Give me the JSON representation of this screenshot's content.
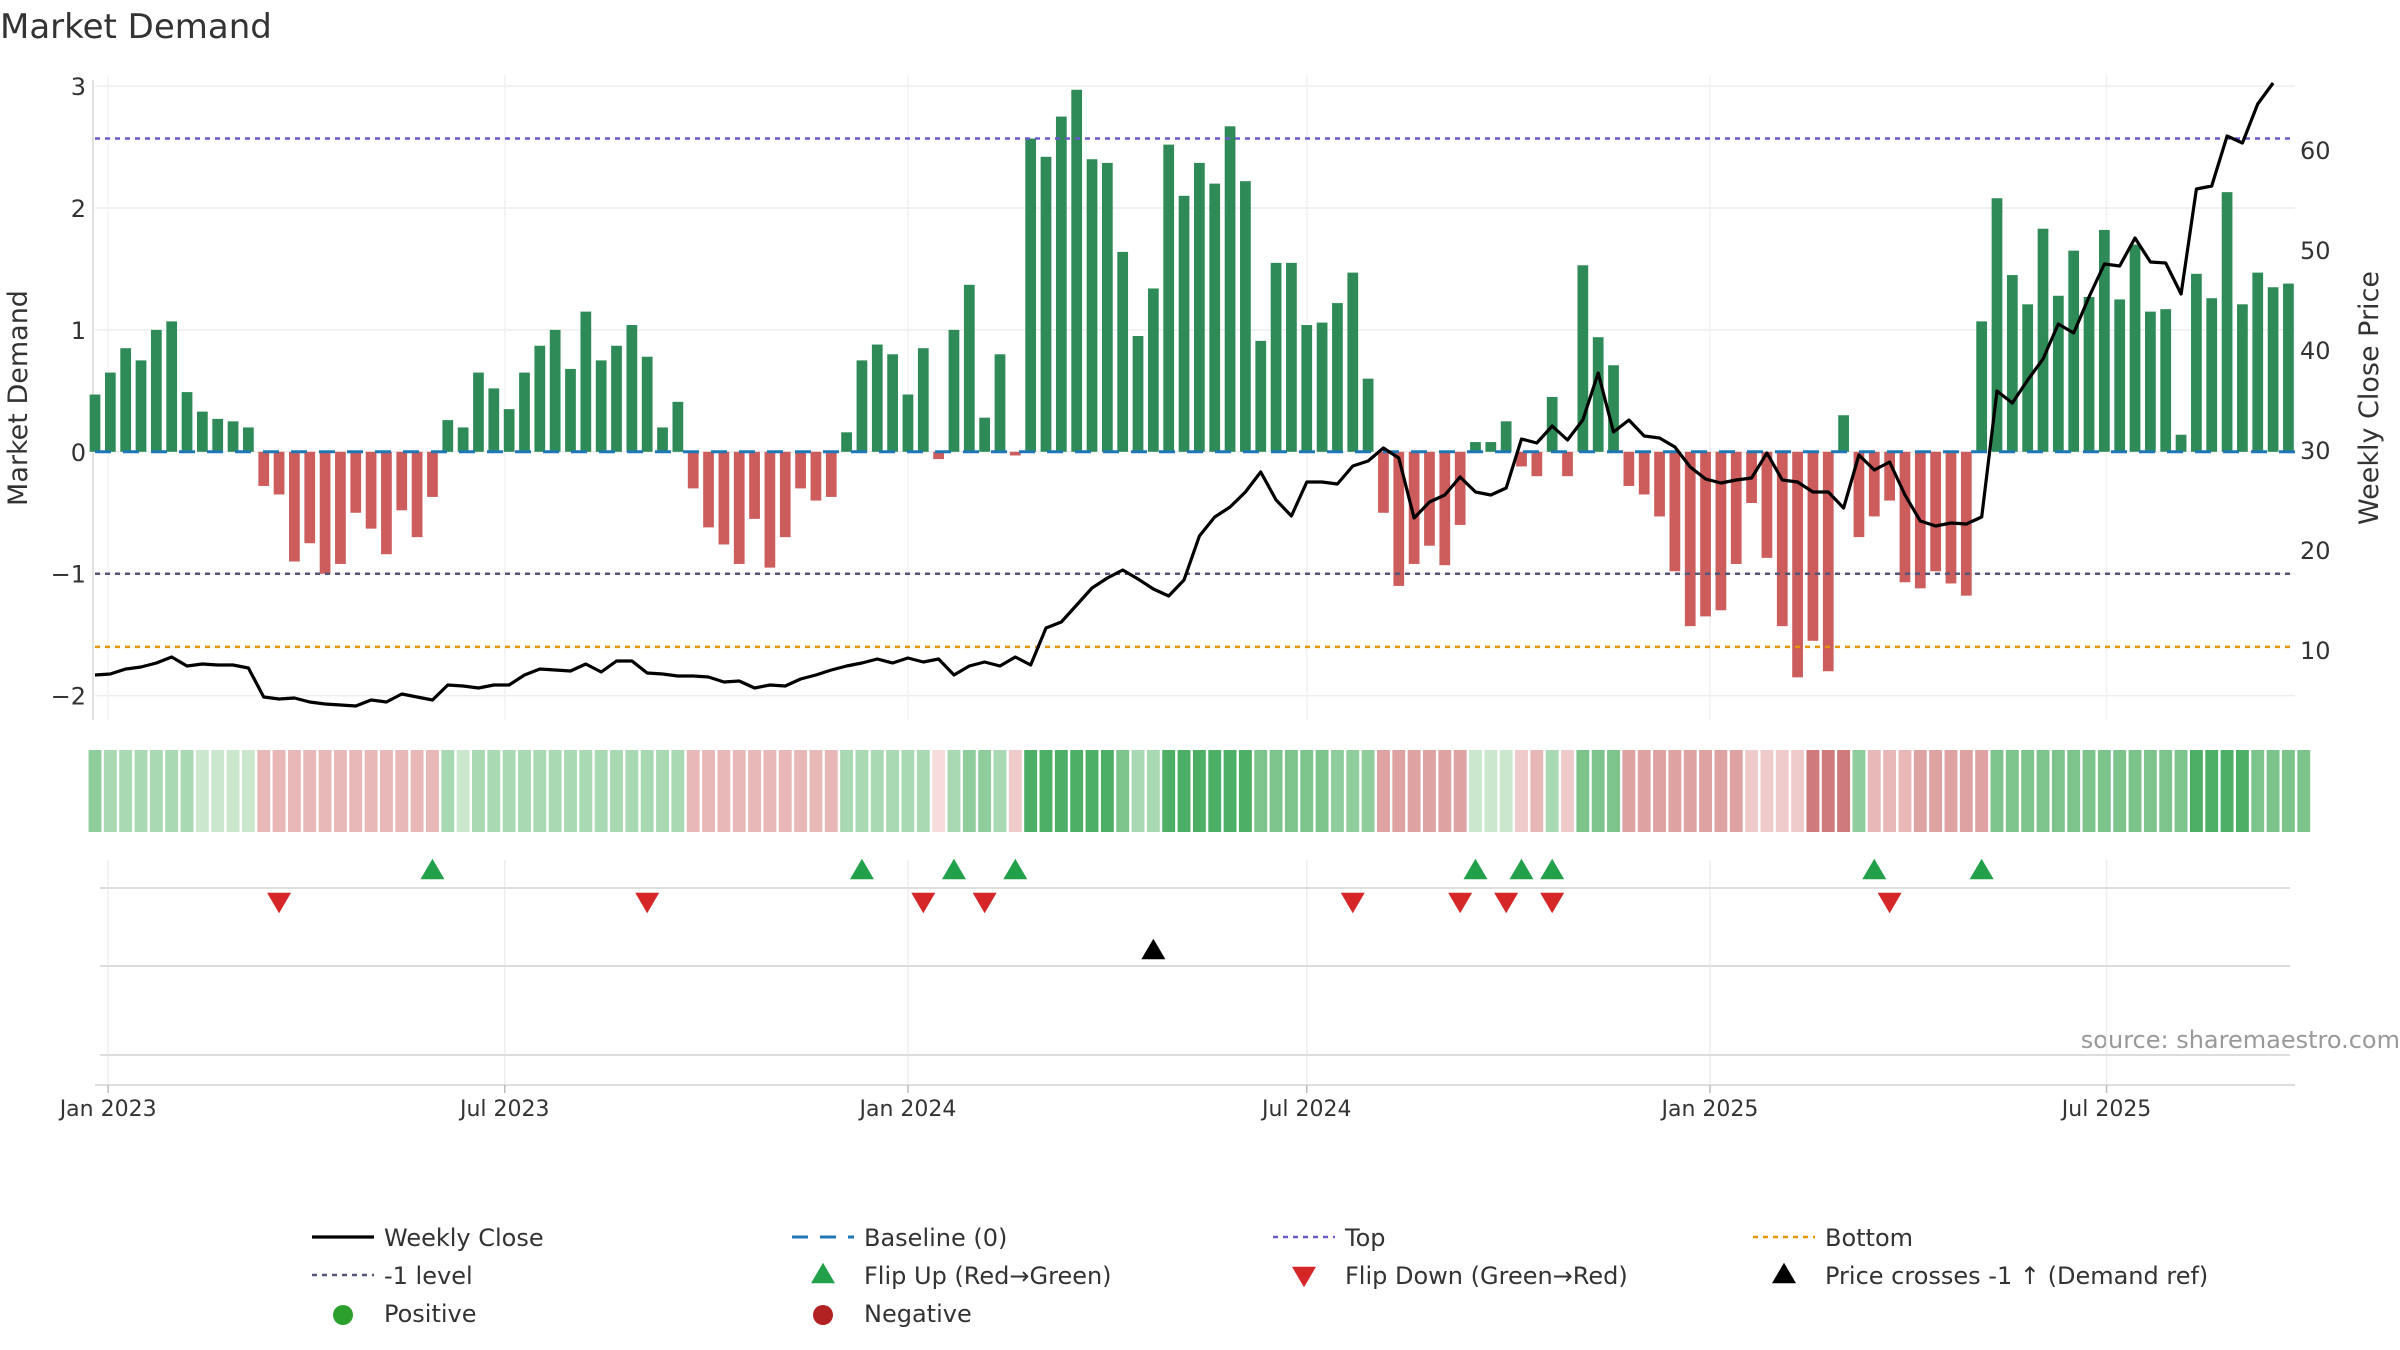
{
  "chart_data": {
    "type": "bar",
    "title": "Market Demand",
    "ylabel": "Market Demand",
    "y2label": "Weekly Close Price",
    "source": "source: sharemaestro.com",
    "ylim": [
      -2.2,
      3.05
    ],
    "y2lim": [
      3.0,
      67.0
    ],
    "yticks": [
      3,
      2,
      1,
      0,
      -1,
      -2
    ],
    "ytick_labels": [
      "3",
      "2",
      "1",
      "0",
      "−1",
      "−2"
    ],
    "y2ticks": [
      60,
      50,
      40,
      30,
      20,
      10
    ],
    "y2tick_labels": [
      "60",
      "50",
      "40",
      "30",
      "20",
      "10"
    ],
    "x_start": "2022-12-26",
    "x_end": "2025-09-25",
    "week_start": "2022-12-26",
    "xticks": [
      {
        "label": "Jan 2023",
        "date": "2023-01-01"
      },
      {
        "label": "Jul 2023",
        "date": "2023-07-01"
      },
      {
        "label": "Jan 2024",
        "date": "2024-01-01"
      },
      {
        "label": "Jul 2024",
        "date": "2024-07-01"
      },
      {
        "label": "Jan 2025",
        "date": "2025-01-01"
      },
      {
        "label": "Jul 2025",
        "date": "2025-07-01"
      }
    ],
    "levels": {
      "top": 2.57,
      "minus_one": -1.0,
      "bottom": -1.6,
      "baseline": 0
    },
    "demand": [
      0.47,
      0.65,
      0.85,
      0.75,
      1.0,
      1.07,
      0.49,
      0.33,
      0.27,
      0.25,
      0.2,
      -0.28,
      -0.35,
      -0.9,
      -0.75,
      -1.0,
      -0.92,
      -0.5,
      -0.63,
      -0.84,
      -0.48,
      -0.7,
      -0.37,
      0.26,
      0.2,
      0.65,
      0.52,
      0.35,
      0.65,
      0.87,
      1.0,
      0.68,
      1.15,
      0.75,
      0.87,
      1.04,
      0.78,
      0.2,
      0.41,
      -0.3,
      -0.62,
      -0.76,
      -0.92,
      -0.55,
      -0.95,
      -0.7,
      -0.3,
      -0.4,
      -0.37,
      0.16,
      0.75,
      0.88,
      0.8,
      0.47,
      0.85,
      -0.06,
      1.0,
      1.37,
      0.28,
      0.8,
      -0.03,
      2.57,
      2.42,
      2.75,
      2.97,
      2.4,
      2.37,
      1.64,
      0.95,
      1.34,
      2.52,
      2.1,
      2.37,
      2.2,
      2.67,
      2.22,
      0.91,
      1.55,
      1.55,
      1.04,
      1.06,
      1.22,
      1.47,
      0.6,
      -0.5,
      -1.1,
      -0.92,
      -0.77,
      -0.93,
      -0.6,
      0.08,
      0.08,
      0.25,
      -0.12,
      -0.2,
      0.45,
      -0.2,
      1.53,
      0.94,
      0.71,
      -0.28,
      -0.35,
      -0.53,
      -0.98,
      -1.43,
      -1.35,
      -1.3,
      -0.92,
      -0.42,
      -0.87,
      -1.43,
      -1.85,
      -1.55,
      -1.8,
      0.3,
      -0.7,
      -0.53,
      -0.4,
      -1.07,
      -1.12,
      -0.98,
      -1.08,
      -1.18,
      1.07,
      2.08,
      1.45,
      1.21,
      1.83,
      1.28,
      1.65,
      1.27,
      1.82,
      1.25,
      1.7,
      1.15,
      1.17,
      0.14,
      1.46,
      1.26,
      2.13,
      1.21,
      1.47,
      1.35,
      1.38
    ],
    "price": [
      7.5,
      7.6,
      8.1,
      8.3,
      8.7,
      9.3,
      8.4,
      8.6,
      8.5,
      8.5,
      8.2,
      5.3,
      5.1,
      5.2,
      4.8,
      4.6,
      4.5,
      4.4,
      5.0,
      4.8,
      5.6,
      5.3,
      5.0,
      6.5,
      6.4,
      6.2,
      6.5,
      6.5,
      7.5,
      8.1,
      8.0,
      7.9,
      8.6,
      7.8,
      8.9,
      8.9,
      7.7,
      7.6,
      7.4,
      7.4,
      7.3,
      6.8,
      6.9,
      6.2,
      6.5,
      6.4,
      7.1,
      7.5,
      8.0,
      8.4,
      8.7,
      9.1,
      8.7,
      9.2,
      8.8,
      9.1,
      7.5,
      8.4,
      8.8,
      8.4,
      9.3,
      8.5,
      12.2,
      12.8,
      14.5,
      16.2,
      17.2,
      18.0,
      17.1,
      16.1,
      15.4,
      17.0,
      21.4,
      23.3,
      24.3,
      25.8,
      27.8,
      25.0,
      23.4,
      26.8,
      26.8,
      26.6,
      28.4,
      28.9,
      30.2,
      29.2,
      23.2,
      24.8,
      25.5,
      27.3,
      25.8,
      25.5,
      26.2,
      31.1,
      30.7,
      32.4,
      31.0,
      33.0,
      37.7,
      31.8,
      33.0,
      31.4,
      31.2,
      30.3,
      28.3,
      27.1,
      26.7,
      27.0,
      27.2,
      29.7,
      27.0,
      26.8,
      25.8,
      25.8,
      24.2,
      29.5,
      28.0,
      28.8,
      25.5,
      22.9,
      22.4,
      22.7,
      22.6,
      23.3,
      35.9,
      34.7,
      37.0,
      39.1,
      42.6,
      41.7,
      45.3,
      48.6,
      48.4,
      51.2,
      48.8,
      48.7,
      45.6,
      56.1,
      56.4,
      61.4,
      60.7,
      64.6,
      66.7
    ],
    "strip": [
      "g4",
      "g3",
      "g3",
      "g3",
      "g3",
      "g3",
      "g3",
      "g2",
      "g2",
      "g2",
      "g2",
      "r3",
      "r3",
      "r3",
      "r3",
      "r3",
      "r3",
      "r3",
      "r3",
      "r3",
      "r3",
      "r3",
      "r3",
      "g3",
      "g2",
      "g3",
      "g3",
      "g3",
      "g3",
      "g3",
      "g3",
      "g3",
      "g3",
      "g3",
      "g3",
      "g3",
      "g3",
      "g3",
      "g3",
      "r3",
      "r3",
      "r3",
      "r3",
      "r3",
      "r3",
      "r3",
      "r3",
      "r3",
      "r3",
      "g3",
      "g3",
      "g3",
      "g3",
      "g3",
      "g3",
      "r1",
      "g3",
      "g4",
      "g4",
      "g3",
      "r2",
      "g6",
      "g6",
      "g6",
      "g6",
      "g6",
      "g6",
      "g5",
      "g3",
      "g3",
      "g6",
      "g6",
      "g6",
      "g6",
      "g6",
      "g6",
      "g5",
      "g5",
      "g5",
      "g5",
      "g5",
      "g4",
      "g4",
      "g4",
      "r4",
      "r4",
      "r4",
      "r4",
      "r4",
      "r4",
      "g2",
      "g2",
      "g2",
      "r2",
      "r3",
      "g3",
      "r2",
      "g5",
      "g5",
      "g5",
      "r4",
      "r4",
      "r4",
      "r4",
      "r4",
      "r4",
      "r4",
      "r4",
      "r2",
      "r2",
      "r2",
      "r2",
      "r6",
      "r6",
      "r6",
      "g4",
      "r3",
      "r3",
      "r3",
      "r4",
      "r4",
      "r4",
      "r4",
      "r4",
      "g5",
      "g5",
      "g5",
      "g5",
      "g5",
      "g5",
      "g5",
      "g5",
      "g5",
      "g5",
      "g5",
      "g5",
      "g5",
      "g6",
      "g6",
      "g6",
      "g6",
      "g5",
      "g5",
      "g5",
      "g5"
    ],
    "flip_up": [
      "2023-05-29",
      "2023-12-11",
      "2024-01-22",
      "2024-02-19",
      "2024-09-16",
      "2024-10-07",
      "2024-10-21",
      "2025-03-17",
      "2025-05-05"
    ],
    "flip_down": [
      "2023-03-20",
      "2023-09-04",
      "2024-01-08",
      "2024-02-05",
      "2024-07-22",
      "2024-09-09",
      "2024-09-30",
      "2024-10-21",
      "2025-03-24"
    ],
    "price_cross": [
      "2024-04-22"
    ],
    "colors": {
      "positive": "#2e8b57",
      "negative": "#cd5c5c",
      "price": "#000000",
      "baseline": "#1f77b4",
      "top": "#6a5acd",
      "minus_one": "#555577",
      "bottom": "#e69500",
      "flip_up": "#22a04a",
      "flip_down": "#d62728",
      "cross": "#000000",
      "legend_positive": "#2ca02c",
      "legend_negative": "#b22222"
    },
    "strip_colors": {
      "g2": "#cbe8cf",
      "g3": "#a9d9b2",
      "g4": "#8fce9c",
      "g5": "#7cc48b",
      "g6": "#4caf65",
      "r1": "#f7dcdc",
      "r2": "#efcaca",
      "r3": "#e8b8b8",
      "r4": "#dea2a2",
      "r6": "#cf7b7b"
    },
    "legend": [
      {
        "key": "weekly_close",
        "label": "Weekly Close",
        "symbol": "line-solid",
        "color": "#000000"
      },
      {
        "key": "baseline",
        "label": "Baseline (0)",
        "symbol": "line-dash",
        "color": "#1f77b4"
      },
      {
        "key": "top",
        "label": "Top",
        "symbol": "line-dot",
        "color": "#6a5acd"
      },
      {
        "key": "bottom",
        "label": "Bottom",
        "symbol": "line-dot",
        "color": "#e69500"
      },
      {
        "key": "minus_one",
        "label": "-1 level",
        "symbol": "line-dot",
        "color": "#555577"
      },
      {
        "key": "flip_up",
        "label": "Flip Up (Red→Green)",
        "symbol": "tri-up",
        "color": "#22a04a"
      },
      {
        "key": "flip_down",
        "label": "Flip Down (Green→Red)",
        "symbol": "tri-down",
        "color": "#d62728"
      },
      {
        "key": "price_cross",
        "label": "Price crosses -1 ↑ (Demand ref)",
        "symbol": "tri-up",
        "color": "#000000"
      },
      {
        "key": "positive",
        "label": "Positive",
        "symbol": "dot",
        "color": "#2ca02c"
      },
      {
        "key": "negative",
        "label": "Negative",
        "symbol": "dot",
        "color": "#b22222"
      }
    ]
  }
}
